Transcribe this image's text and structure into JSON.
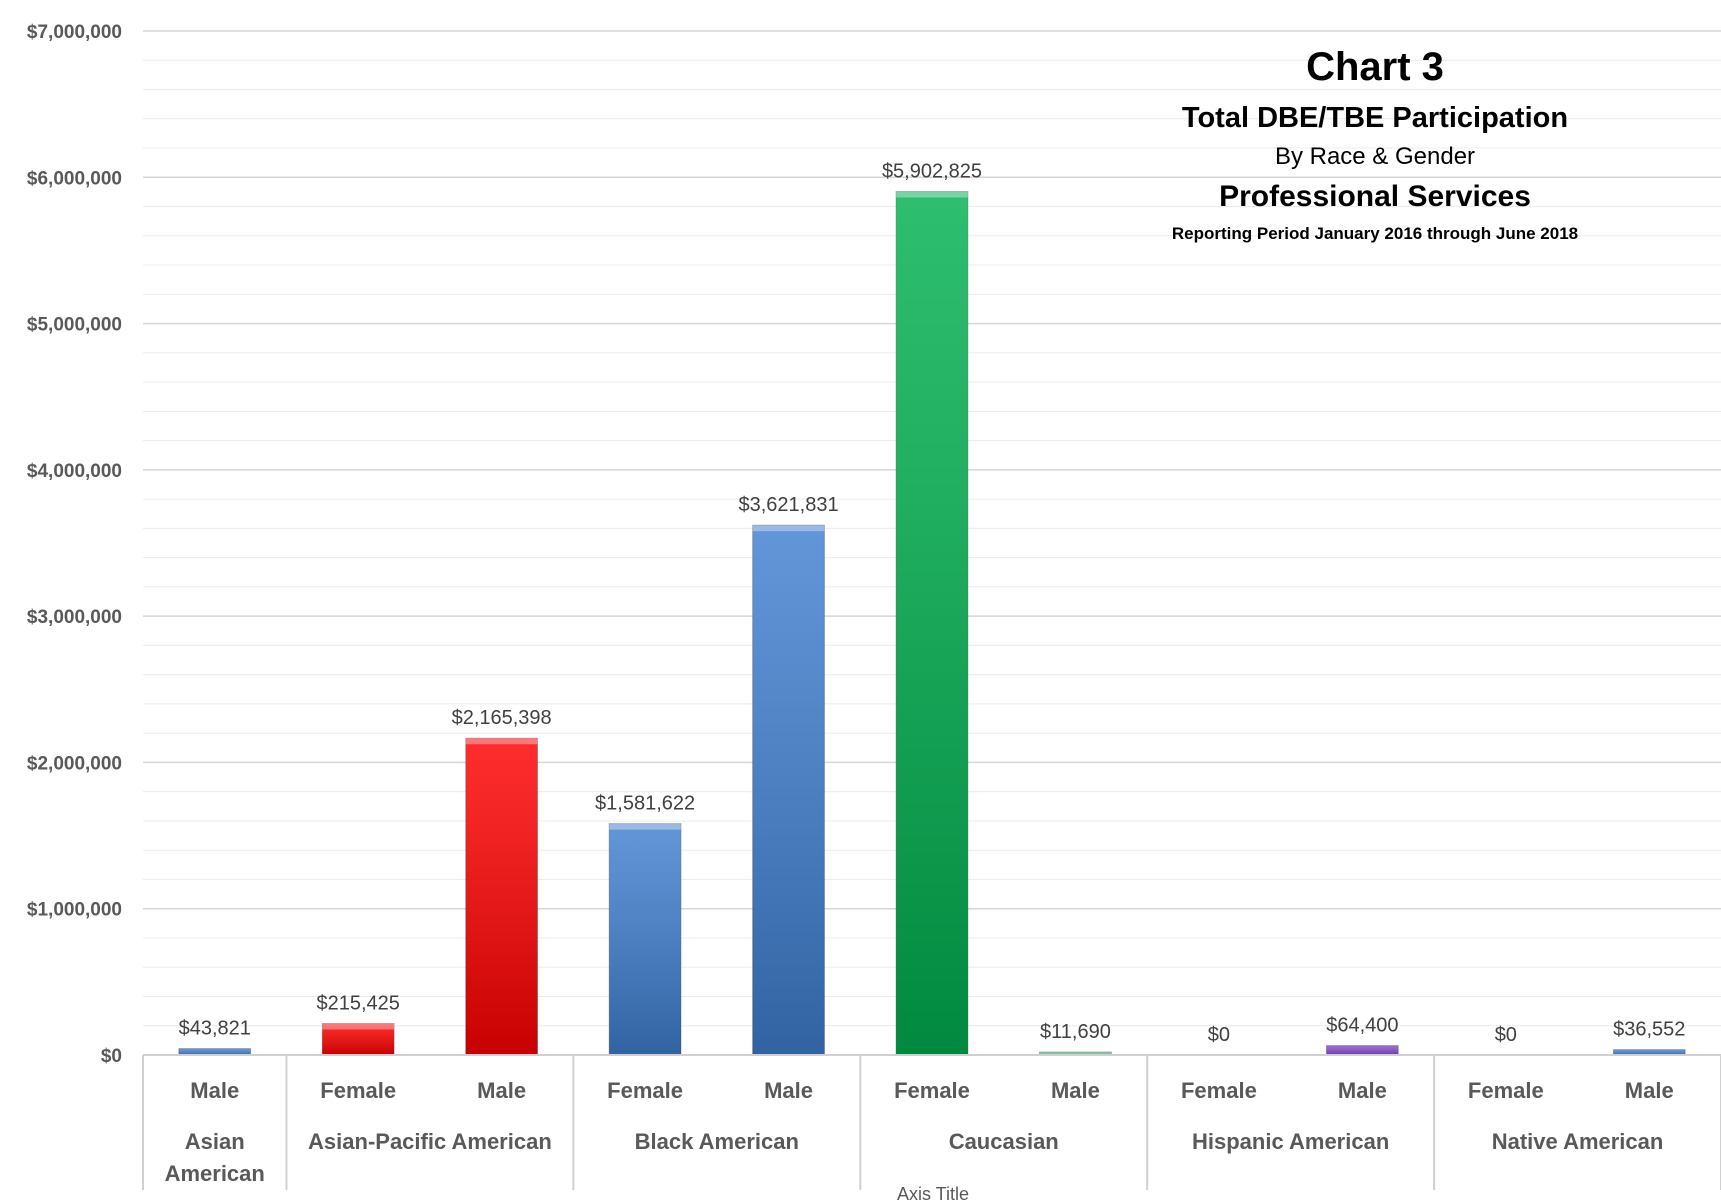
{
  "chart_data": {
    "type": "bar",
    "title": "Chart 3",
    "subtitle_lines": [
      "Total DBE/TBE Participation",
      "By Race & Gender",
      "Professional Services",
      "Reporting Period January 2016 through June 2018"
    ],
    "xlabel": "Axis Title",
    "ylabel": "",
    "ylim": [
      0,
      7000000
    ],
    "yticks": [
      0,
      1000000,
      2000000,
      3000000,
      4000000,
      5000000,
      6000000,
      7000000
    ],
    "ytick_labels": [
      "$0",
      "$1,000,000",
      "$2,000,000",
      "$3,000,000",
      "$4,000,000",
      "$5,000,000",
      "$6,000,000",
      "$7,000,000"
    ],
    "grid": true,
    "legend": "none",
    "groups": [
      {
        "name": "Asian American",
        "name_lines": [
          "Asian",
          "American"
        ],
        "span": 1
      },
      {
        "name": "Asian-Pacific American",
        "name_lines": [
          "Asian-Pacific American"
        ],
        "span": 2
      },
      {
        "name": "Black American",
        "name_lines": [
          "Black American"
        ],
        "span": 2
      },
      {
        "name": "Caucasian",
        "name_lines": [
          "Caucasian"
        ],
        "span": 2
      },
      {
        "name": "Hispanic American",
        "name_lines": [
          "Hispanic American"
        ],
        "span": 2
      },
      {
        "name": "Native American",
        "name_lines": [
          "Native American"
        ],
        "span": 2
      }
    ],
    "bars": [
      {
        "group": "Asian American",
        "category": "Male",
        "value": 43821,
        "label": "$43,821",
        "color": "#4a86d4"
      },
      {
        "group": "Asian-Pacific American",
        "category": "Female",
        "value": 215425,
        "label": "$215,425",
        "color": "#ff0000"
      },
      {
        "group": "Asian-Pacific American",
        "category": "Male",
        "value": 2165398,
        "label": "$2,165,398",
        "color": "#ff0000"
      },
      {
        "group": "Black American",
        "category": "Female",
        "value": 1581622,
        "label": "$1,581,622",
        "color": "#3f7fd0"
      },
      {
        "group": "Black American",
        "category": "Male",
        "value": 3621831,
        "label": "$3,621,831",
        "color": "#3f7fd0"
      },
      {
        "group": "Caucasian",
        "category": "Female",
        "value": 5902825,
        "label": "$5,902,825",
        "color": "#00b050"
      },
      {
        "group": "Caucasian",
        "category": "Male",
        "value": 11690,
        "label": "$11,690",
        "color": "#7fd4a8"
      },
      {
        "group": "Hispanic American",
        "category": "Female",
        "value": 0,
        "label": "$0",
        "color": "#7030a0"
      },
      {
        "group": "Hispanic American",
        "category": "Male",
        "value": 64400,
        "label": "$64,400",
        "color": "#8a4fd0"
      },
      {
        "group": "Native American",
        "category": "Female",
        "value": 0,
        "label": "$0",
        "color": "#4a86d4"
      },
      {
        "group": "Native American",
        "category": "Male",
        "value": 36552,
        "label": "$36,552",
        "color": "#4a86d4"
      }
    ]
  }
}
